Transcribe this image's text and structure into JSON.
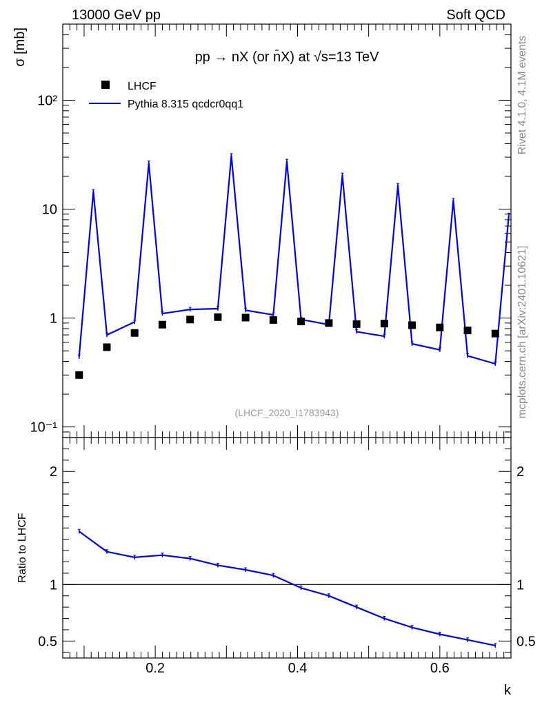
{
  "header": {
    "left": "13000 GeV pp",
    "right": "Soft QCD"
  },
  "side_labels": {
    "rivet": "Rivet 4.1.0,  4.1M events",
    "source": "mcplots.cern.ch [arXiv:2401.10621]"
  },
  "analysis_tag": "(LHCF_2020_I1783943)",
  "chart_data": [
    {
      "type": "scatter",
      "title": "pp → nX (or n̄X) at √s=13 TeV",
      "xlabel": "",
      "ylabel": "σ [mb]",
      "yscale": "log",
      "xlim": [
        0.07,
        0.7
      ],
      "ylim": [
        0.08,
        500
      ],
      "y_tick_labels": [
        "10⁻¹",
        "1",
        "10",
        "10²"
      ],
      "legend_position": "top-left",
      "series": [
        {
          "name": "LHCF",
          "style": "markers",
          "color": "#000000",
          "x": [
            0.093,
            0.132,
            0.171,
            0.21,
            0.249,
            0.288,
            0.327,
            0.366,
            0.405,
            0.444,
            0.483,
            0.522,
            0.561,
            0.6,
            0.639,
            0.678
          ],
          "y": [
            0.3,
            0.54,
            0.73,
            0.87,
            0.97,
            1.02,
            1.01,
            0.96,
            0.93,
            0.9,
            0.88,
            0.89,
            0.86,
            0.82,
            0.77,
            0.72
          ]
        },
        {
          "name": "Pythia 8.315 qcdcr0qq1",
          "style": "line",
          "color": "#0000ee",
          "x": [
            0.093,
            0.113,
            0.132,
            0.171,
            0.191,
            0.21,
            0.249,
            0.288,
            0.307,
            0.327,
            0.366,
            0.385,
            0.405,
            0.444,
            0.463,
            0.483,
            0.522,
            0.541,
            0.561,
            0.6,
            0.619,
            0.639,
            0.678,
            0.697
          ],
          "y": [
            0.44,
            14.5,
            0.7,
            0.92,
            26.5,
            1.1,
            1.2,
            1.22,
            31.0,
            1.18,
            1.07,
            27.5,
            0.97,
            0.87,
            20.5,
            0.75,
            0.68,
            16.5,
            0.58,
            0.51,
            12.0,
            0.45,
            0.38,
            8.8
          ]
        }
      ]
    },
    {
      "type": "line",
      "xlabel": "k",
      "ylabel": "Ratio to LHCF",
      "xlim": [
        0.07,
        0.7
      ],
      "ylim": [
        0.35,
        2.3
      ],
      "x_ticks": [
        0.2,
        0.4,
        0.6
      ],
      "x_tick_labels": [
        "0.2",
        "0.4",
        "0.6"
      ],
      "y_ticks": [
        0.5,
        1,
        2
      ],
      "y_tick_labels": [
        "0.5",
        "1",
        "2"
      ],
      "reference_line": 1,
      "series": [
        {
          "name": "Pythia 8.315 qcdcr0qq1 / LHCF",
          "color": "#0000ee",
          "x": [
            0.093,
            0.132,
            0.171,
            0.21,
            0.249,
            0.288,
            0.327,
            0.366,
            0.405,
            0.444,
            0.483,
            0.522,
            0.561,
            0.6,
            0.639,
            0.678
          ],
          "y": [
            1.47,
            1.29,
            1.24,
            1.26,
            1.23,
            1.17,
            1.13,
            1.08,
            0.97,
            0.9,
            0.8,
            0.7,
            0.62,
            0.56,
            0.51,
            0.46
          ]
        }
      ]
    }
  ]
}
